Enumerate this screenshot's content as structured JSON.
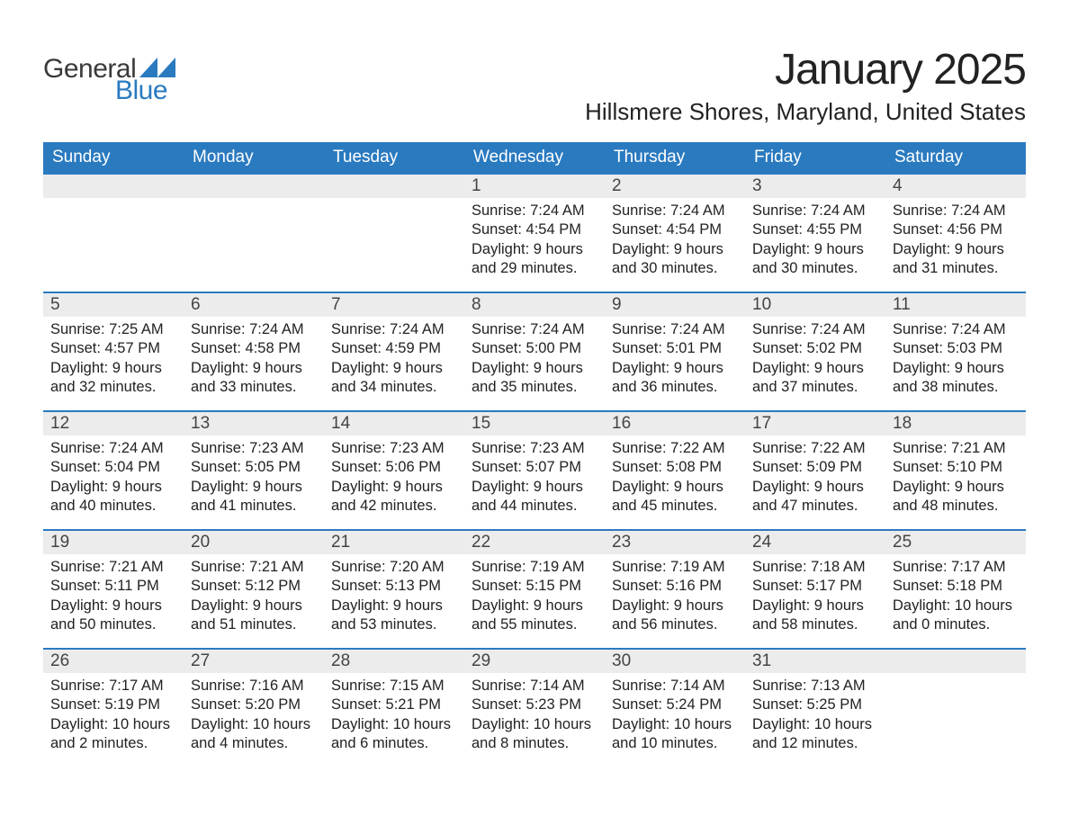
{
  "brand": {
    "part1": "General",
    "part2": "Blue"
  },
  "colors": {
    "brand_blue": "#2a7ac0",
    "header_bg": "#2a7ac0",
    "header_text": "#ffffff",
    "daynum_bg": "#ececec",
    "text": "#222222",
    "logo_gray": "#3a3a3a"
  },
  "title": "January 2025",
  "location": "Hillsmere Shores, Maryland, United States",
  "weekdays": [
    "Sunday",
    "Monday",
    "Tuesday",
    "Wednesday",
    "Thursday",
    "Friday",
    "Saturday"
  ],
  "weeks": [
    [
      {
        "blank": true
      },
      {
        "blank": true
      },
      {
        "blank": true
      },
      {
        "n": "1",
        "sr": "Sunrise: 7:24 AM",
        "ss": "Sunset: 4:54 PM",
        "d1": "Daylight: 9 hours",
        "d2": "and 29 minutes."
      },
      {
        "n": "2",
        "sr": "Sunrise: 7:24 AM",
        "ss": "Sunset: 4:54 PM",
        "d1": "Daylight: 9 hours",
        "d2": "and 30 minutes."
      },
      {
        "n": "3",
        "sr": "Sunrise: 7:24 AM",
        "ss": "Sunset: 4:55 PM",
        "d1": "Daylight: 9 hours",
        "d2": "and 30 minutes."
      },
      {
        "n": "4",
        "sr": "Sunrise: 7:24 AM",
        "ss": "Sunset: 4:56 PM",
        "d1": "Daylight: 9 hours",
        "d2": "and 31 minutes."
      }
    ],
    [
      {
        "n": "5",
        "sr": "Sunrise: 7:25 AM",
        "ss": "Sunset: 4:57 PM",
        "d1": "Daylight: 9 hours",
        "d2": "and 32 minutes."
      },
      {
        "n": "6",
        "sr": "Sunrise: 7:24 AM",
        "ss": "Sunset: 4:58 PM",
        "d1": "Daylight: 9 hours",
        "d2": "and 33 minutes."
      },
      {
        "n": "7",
        "sr": "Sunrise: 7:24 AM",
        "ss": "Sunset: 4:59 PM",
        "d1": "Daylight: 9 hours",
        "d2": "and 34 minutes."
      },
      {
        "n": "8",
        "sr": "Sunrise: 7:24 AM",
        "ss": "Sunset: 5:00 PM",
        "d1": "Daylight: 9 hours",
        "d2": "and 35 minutes."
      },
      {
        "n": "9",
        "sr": "Sunrise: 7:24 AM",
        "ss": "Sunset: 5:01 PM",
        "d1": "Daylight: 9 hours",
        "d2": "and 36 minutes."
      },
      {
        "n": "10",
        "sr": "Sunrise: 7:24 AM",
        "ss": "Sunset: 5:02 PM",
        "d1": "Daylight: 9 hours",
        "d2": "and 37 minutes."
      },
      {
        "n": "11",
        "sr": "Sunrise: 7:24 AM",
        "ss": "Sunset: 5:03 PM",
        "d1": "Daylight: 9 hours",
        "d2": "and 38 minutes."
      }
    ],
    [
      {
        "n": "12",
        "sr": "Sunrise: 7:24 AM",
        "ss": "Sunset: 5:04 PM",
        "d1": "Daylight: 9 hours",
        "d2": "and 40 minutes."
      },
      {
        "n": "13",
        "sr": "Sunrise: 7:23 AM",
        "ss": "Sunset: 5:05 PM",
        "d1": "Daylight: 9 hours",
        "d2": "and 41 minutes."
      },
      {
        "n": "14",
        "sr": "Sunrise: 7:23 AM",
        "ss": "Sunset: 5:06 PM",
        "d1": "Daylight: 9 hours",
        "d2": "and 42 minutes."
      },
      {
        "n": "15",
        "sr": "Sunrise: 7:23 AM",
        "ss": "Sunset: 5:07 PM",
        "d1": "Daylight: 9 hours",
        "d2": "and 44 minutes."
      },
      {
        "n": "16",
        "sr": "Sunrise: 7:22 AM",
        "ss": "Sunset: 5:08 PM",
        "d1": "Daylight: 9 hours",
        "d2": "and 45 minutes."
      },
      {
        "n": "17",
        "sr": "Sunrise: 7:22 AM",
        "ss": "Sunset: 5:09 PM",
        "d1": "Daylight: 9 hours",
        "d2": "and 47 minutes."
      },
      {
        "n": "18",
        "sr": "Sunrise: 7:21 AM",
        "ss": "Sunset: 5:10 PM",
        "d1": "Daylight: 9 hours",
        "d2": "and 48 minutes."
      }
    ],
    [
      {
        "n": "19",
        "sr": "Sunrise: 7:21 AM",
        "ss": "Sunset: 5:11 PM",
        "d1": "Daylight: 9 hours",
        "d2": "and 50 minutes."
      },
      {
        "n": "20",
        "sr": "Sunrise: 7:21 AM",
        "ss": "Sunset: 5:12 PM",
        "d1": "Daylight: 9 hours",
        "d2": "and 51 minutes."
      },
      {
        "n": "21",
        "sr": "Sunrise: 7:20 AM",
        "ss": "Sunset: 5:13 PM",
        "d1": "Daylight: 9 hours",
        "d2": "and 53 minutes."
      },
      {
        "n": "22",
        "sr": "Sunrise: 7:19 AM",
        "ss": "Sunset: 5:15 PM",
        "d1": "Daylight: 9 hours",
        "d2": "and 55 minutes."
      },
      {
        "n": "23",
        "sr": "Sunrise: 7:19 AM",
        "ss": "Sunset: 5:16 PM",
        "d1": "Daylight: 9 hours",
        "d2": "and 56 minutes."
      },
      {
        "n": "24",
        "sr": "Sunrise: 7:18 AM",
        "ss": "Sunset: 5:17 PM",
        "d1": "Daylight: 9 hours",
        "d2": "and 58 minutes."
      },
      {
        "n": "25",
        "sr": "Sunrise: 7:17 AM",
        "ss": "Sunset: 5:18 PM",
        "d1": "Daylight: 10 hours",
        "d2": "and 0 minutes."
      }
    ],
    [
      {
        "n": "26",
        "sr": "Sunrise: 7:17 AM",
        "ss": "Sunset: 5:19 PM",
        "d1": "Daylight: 10 hours",
        "d2": "and 2 minutes."
      },
      {
        "n": "27",
        "sr": "Sunrise: 7:16 AM",
        "ss": "Sunset: 5:20 PM",
        "d1": "Daylight: 10 hours",
        "d2": "and 4 minutes."
      },
      {
        "n": "28",
        "sr": "Sunrise: 7:15 AM",
        "ss": "Sunset: 5:21 PM",
        "d1": "Daylight: 10 hours",
        "d2": "and 6 minutes."
      },
      {
        "n": "29",
        "sr": "Sunrise: 7:14 AM",
        "ss": "Sunset: 5:23 PM",
        "d1": "Daylight: 10 hours",
        "d2": "and 8 minutes."
      },
      {
        "n": "30",
        "sr": "Sunrise: 7:14 AM",
        "ss": "Sunset: 5:24 PM",
        "d1": "Daylight: 10 hours",
        "d2": "and 10 minutes."
      },
      {
        "n": "31",
        "sr": "Sunrise: 7:13 AM",
        "ss": "Sunset: 5:25 PM",
        "d1": "Daylight: 10 hours",
        "d2": "and 12 minutes."
      },
      {
        "blank": true
      }
    ]
  ]
}
